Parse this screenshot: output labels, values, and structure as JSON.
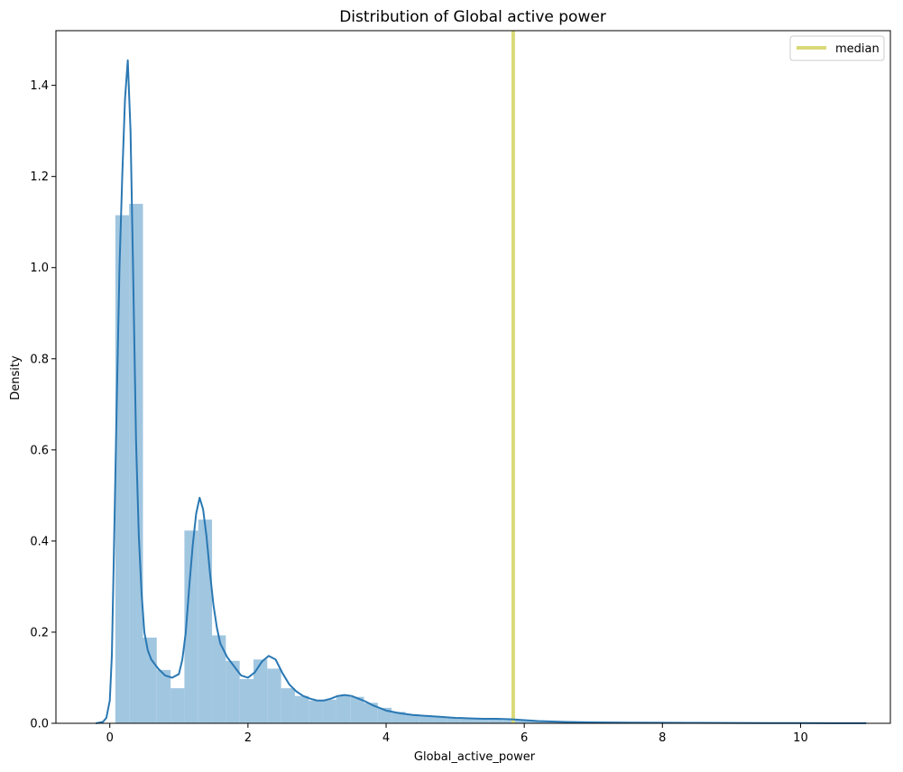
{
  "chart_data": {
    "type": "histogram",
    "title": "Distribution of Global active power",
    "xlabel": "Global_active_power",
    "ylabel": "Density",
    "xlim": [
      -0.78,
      11.3
    ],
    "ylim": [
      0,
      1.52
    ],
    "xticks": [
      0,
      2,
      4,
      6,
      8,
      10
    ],
    "xtick_labels": [
      "0",
      "2",
      "4",
      "6",
      "8",
      "10"
    ],
    "yticks": [
      0.0,
      0.2,
      0.4,
      0.6,
      0.8,
      1.0,
      1.2,
      1.4
    ],
    "ytick_labels": [
      "0.0",
      "0.2",
      "0.4",
      "0.6",
      "0.8",
      "1.0",
      "1.2",
      "1.4"
    ],
    "legend": {
      "position": "upper right",
      "entries": [
        {
          "label": "median",
          "color": "#dada7a"
        }
      ]
    },
    "colors": {
      "hist": "#a1c6e0",
      "kde": "#2a78b3",
      "median": "#dada7a"
    },
    "median_x": 5.84,
    "histogram": {
      "bin_width": 0.2,
      "bins": [
        {
          "x0": 0.08,
          "density": 1.115
        },
        {
          "x0": 0.28,
          "density": 1.14
        },
        {
          "x0": 0.48,
          "density": 0.188
        },
        {
          "x0": 0.68,
          "density": 0.117
        },
        {
          "x0": 0.88,
          "density": 0.077
        },
        {
          "x0": 1.08,
          "density": 0.423
        },
        {
          "x0": 1.28,
          "density": 0.447
        },
        {
          "x0": 1.48,
          "density": 0.193
        },
        {
          "x0": 1.68,
          "density": 0.137
        },
        {
          "x0": 1.88,
          "density": 0.097
        },
        {
          "x0": 2.08,
          "density": 0.14
        },
        {
          "x0": 2.28,
          "density": 0.12
        },
        {
          "x0": 2.48,
          "density": 0.077
        },
        {
          "x0": 2.68,
          "density": 0.06
        },
        {
          "x0": 2.88,
          "density": 0.05
        },
        {
          "x0": 3.08,
          "density": 0.052
        },
        {
          "x0": 3.28,
          "density": 0.06
        },
        {
          "x0": 3.48,
          "density": 0.058
        },
        {
          "x0": 3.68,
          "density": 0.045
        },
        {
          "x0": 3.88,
          "density": 0.034
        },
        {
          "x0": 4.08,
          "density": 0.025
        },
        {
          "x0": 4.28,
          "density": 0.02
        },
        {
          "x0": 4.48,
          "density": 0.016
        },
        {
          "x0": 4.68,
          "density": 0.014
        },
        {
          "x0": 4.88,
          "density": 0.012
        },
        {
          "x0": 5.08,
          "density": 0.01
        },
        {
          "x0": 5.28,
          "density": 0.009
        },
        {
          "x0": 5.48,
          "density": 0.008
        },
        {
          "x0": 5.68,
          "density": 0.007
        },
        {
          "x0": 5.88,
          "density": 0.006
        },
        {
          "x0": 6.08,
          "density": 0.004
        },
        {
          "x0": 6.28,
          "density": 0.003
        },
        {
          "x0": 6.48,
          "density": 0.002
        },
        {
          "x0": 6.68,
          "density": 0.0015
        },
        {
          "x0": 6.88,
          "density": 0.0012
        },
        {
          "x0": 7.08,
          "density": 0.001
        },
        {
          "x0": 7.28,
          "density": 0.0008
        },
        {
          "x0": 7.48,
          "density": 0.0006
        },
        {
          "x0": 7.68,
          "density": 0.0005
        },
        {
          "x0": 7.88,
          "density": 0.0004
        }
      ]
    },
    "kde": {
      "x": [
        -0.2,
        -0.1,
        -0.05,
        0.0,
        0.03,
        0.06,
        0.1,
        0.14,
        0.18,
        0.22,
        0.26,
        0.3,
        0.34,
        0.38,
        0.42,
        0.46,
        0.5,
        0.55,
        0.6,
        0.7,
        0.8,
        0.9,
        1.0,
        1.05,
        1.1,
        1.15,
        1.2,
        1.25,
        1.3,
        1.35,
        1.4,
        1.45,
        1.5,
        1.55,
        1.6,
        1.7,
        1.8,
        1.9,
        2.0,
        2.1,
        2.2,
        2.3,
        2.4,
        2.5,
        2.6,
        2.7,
        2.8,
        2.9,
        3.0,
        3.1,
        3.2,
        3.3,
        3.4,
        3.5,
        3.6,
        3.7,
        3.8,
        3.9,
        4.0,
        4.2,
        4.4,
        4.6,
        4.8,
        5.0,
        5.2,
        5.4,
        5.6,
        5.8,
        6.0,
        6.2,
        6.4,
        6.6,
        6.8,
        7.0,
        7.5,
        8.0,
        8.5,
        9.0,
        9.5,
        10.0,
        10.5,
        10.95
      ],
      "y": [
        0.0,
        0.003,
        0.012,
        0.05,
        0.15,
        0.38,
        0.7,
        1.0,
        1.2,
        1.37,
        1.455,
        1.3,
        0.97,
        0.62,
        0.41,
        0.285,
        0.2,
        0.16,
        0.14,
        0.12,
        0.105,
        0.1,
        0.108,
        0.14,
        0.2,
        0.3,
        0.39,
        0.46,
        0.495,
        0.47,
        0.41,
        0.33,
        0.26,
        0.21,
        0.175,
        0.145,
        0.125,
        0.105,
        0.1,
        0.112,
        0.135,
        0.148,
        0.14,
        0.11,
        0.085,
        0.07,
        0.06,
        0.054,
        0.05,
        0.05,
        0.054,
        0.06,
        0.062,
        0.06,
        0.054,
        0.048,
        0.04,
        0.034,
        0.028,
        0.022,
        0.018,
        0.016,
        0.014,
        0.012,
        0.011,
        0.01,
        0.01,
        0.009,
        0.007,
        0.005,
        0.004,
        0.003,
        0.0025,
        0.002,
        0.0015,
        0.0012,
        0.001,
        0.0008,
        0.0006,
        0.0005,
        0.0003,
        0.0002
      ]
    }
  }
}
